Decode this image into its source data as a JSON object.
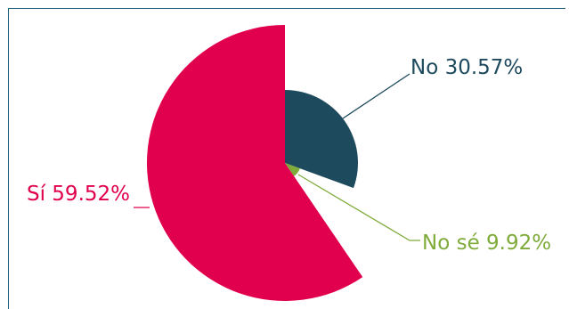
{
  "chart_data": {
    "type": "pie",
    "title": "",
    "slices": [
      {
        "label": "No",
        "percent_text": "30.57%",
        "value": 30.57,
        "color": "#1e4a5e"
      },
      {
        "label": "No sé",
        "percent_text": "9.92%",
        "value": 9.92,
        "color": "#7fab3b"
      },
      {
        "label": "Sí",
        "percent_text": "59.52%",
        "value": 59.52,
        "color": "#e0004d"
      }
    ],
    "label_colors": {
      "No": "#1e4a5e",
      "No sé": "#7fab3b",
      "Sí": "#e0004d"
    },
    "border_color": "#1f5f7a"
  }
}
